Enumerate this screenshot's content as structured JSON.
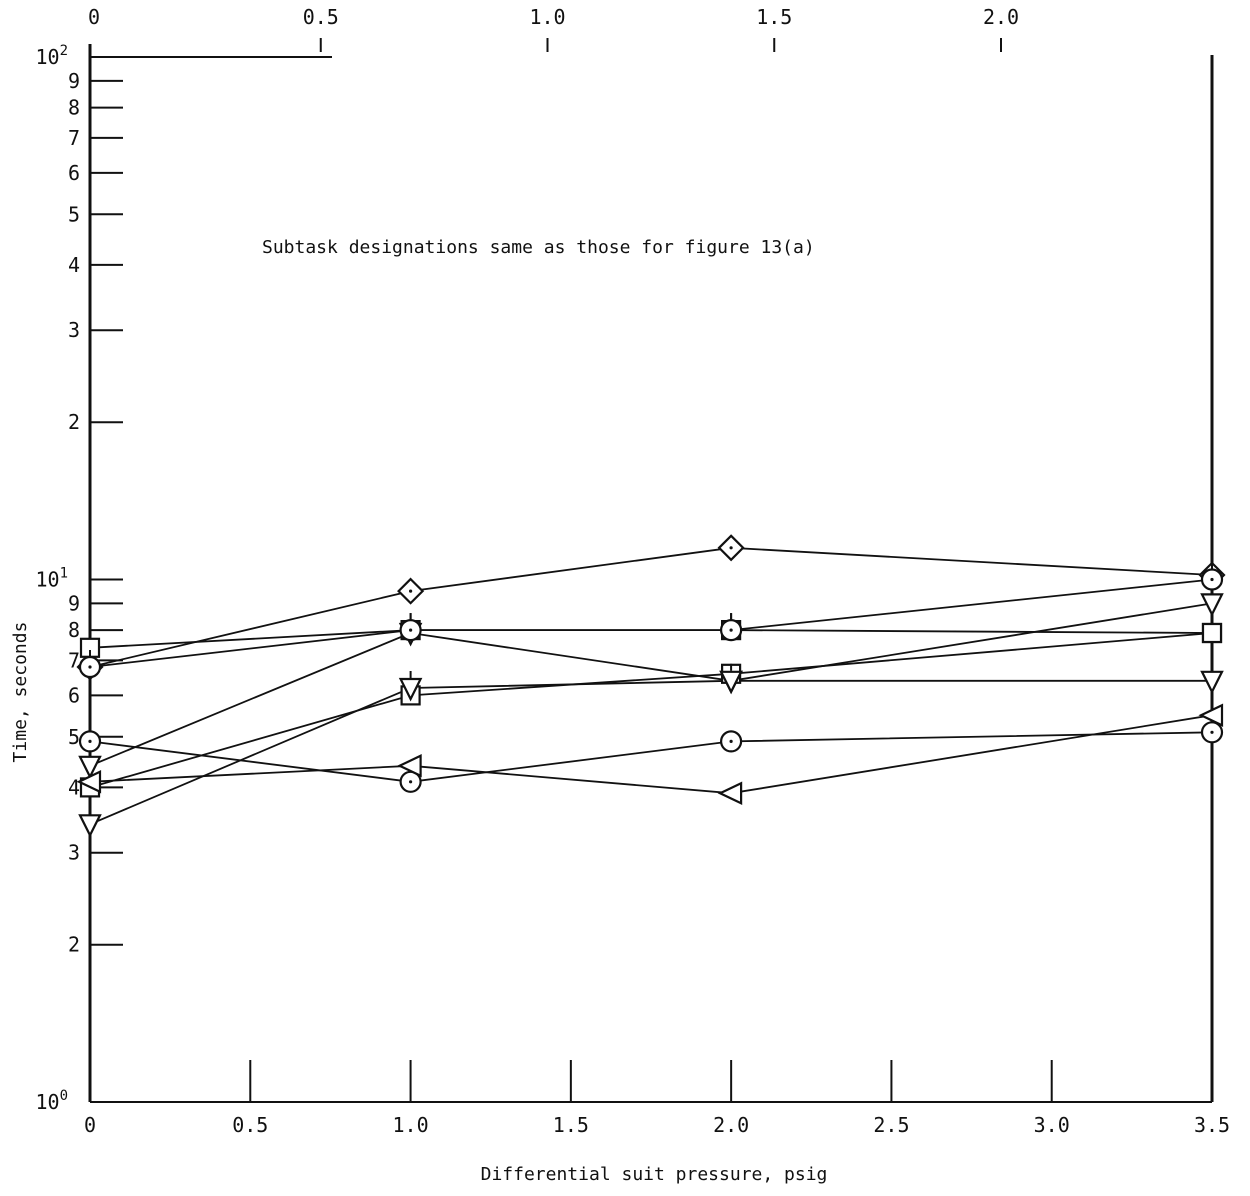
{
  "chart_data": {
    "type": "line",
    "title": "",
    "annotation": "Subtask designations same as those for figure 13(a)",
    "xlabel": "Differential suit pressure, psig",
    "ylabel": "Time, seconds",
    "xlim": [
      0,
      3.5
    ],
    "ylim": [
      1,
      100
    ],
    "yscale": "log",
    "grid": false,
    "x_ticks": [
      "0",
      "0.5",
      "1.0",
      "1.5",
      "2.0",
      "2.5",
      "3.0",
      "3.5"
    ],
    "x_tick_values": [
      0,
      0.5,
      1.0,
      1.5,
      2.0,
      2.5,
      3.0,
      3.5
    ],
    "top_axis_ticks": [
      "0",
      "0.5",
      "1.0",
      "1.5",
      "2.0"
    ],
    "top_axis_tick_values": [
      0,
      0.5,
      1.0,
      1.5,
      2.0
    ],
    "y_ticks": [
      {
        "value": 1,
        "base": "10",
        "exp": "0"
      },
      {
        "value": 2,
        "label": "2"
      },
      {
        "value": 3,
        "label": "3"
      },
      {
        "value": 4,
        "label": "4"
      },
      {
        "value": 5,
        "label": "5"
      },
      {
        "value": 6,
        "label": "6"
      },
      {
        "value": 7,
        "label": "7"
      },
      {
        "value": 8,
        "label": "8"
      },
      {
        "value": 9,
        "label": "9"
      },
      {
        "value": 10,
        "base": "10",
        "exp": "1"
      },
      {
        "value": 20,
        "label": "2"
      },
      {
        "value": 30,
        "label": "3"
      },
      {
        "value": 40,
        "label": "4"
      },
      {
        "value": 50,
        "label": "5"
      },
      {
        "value": 60,
        "label": "6"
      },
      {
        "value": 70,
        "label": "7"
      },
      {
        "value": 80,
        "label": "8"
      },
      {
        "value": 90,
        "label": "9"
      },
      {
        "value": 100,
        "base": "10",
        "exp": "2"
      }
    ],
    "x": [
      0,
      1.0,
      2.0,
      3.5
    ],
    "series": [
      {
        "marker": "diamond",
        "values": [
          6.8,
          9.5,
          11.5,
          10.2
        ]
      },
      {
        "marker": "square-flag",
        "values": [
          7.4,
          8.0,
          8.0,
          7.9
        ]
      },
      {
        "marker": "triangle-down",
        "values": [
          4.4,
          7.9,
          6.4,
          9.0
        ]
      },
      {
        "marker": "square",
        "values": [
          4.0,
          6.0,
          6.6,
          7.9
        ]
      },
      {
        "marker": "triangle-down-flag",
        "values": [
          3.4,
          6.2,
          6.4,
          6.4
        ]
      },
      {
        "marker": "circle",
        "values": [
          4.9,
          4.1,
          4.9,
          5.1
        ]
      },
      {
        "marker": "triangle-left",
        "values": [
          4.1,
          4.4,
          3.9,
          5.5
        ]
      },
      {
        "marker": "circle-flag",
        "values": [
          6.8,
          8.0,
          8.0,
          10.0
        ]
      }
    ]
  }
}
